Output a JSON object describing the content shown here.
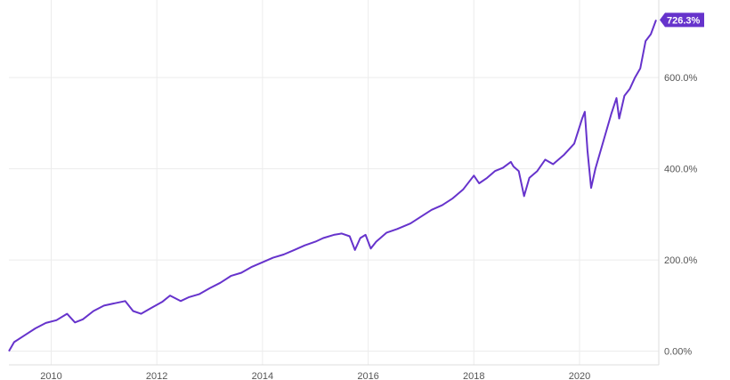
{
  "chart_data": {
    "type": "line",
    "title": "",
    "xlabel": "",
    "ylabel": "",
    "x_ticks": [
      "2010",
      "2012",
      "2014",
      "2016",
      "2018",
      "2020"
    ],
    "y_ticks": [
      "0.00%",
      "200.0%",
      "400.0%",
      "600.0%"
    ],
    "xlim": [
      2009.2,
      2021.5
    ],
    "ylim": [
      -30,
      770
    ],
    "grid": true,
    "series": [
      {
        "color": "#6633cc",
        "last_value_label": "726.3%",
        "points": [
          [
            2009.2,
            0
          ],
          [
            2009.3,
            20
          ],
          [
            2009.5,
            35
          ],
          [
            2009.7,
            50
          ],
          [
            2009.9,
            62
          ],
          [
            2010.1,
            68
          ],
          [
            2010.3,
            82
          ],
          [
            2010.45,
            63
          ],
          [
            2010.6,
            70
          ],
          [
            2010.8,
            88
          ],
          [
            2011.0,
            100
          ],
          [
            2011.2,
            105
          ],
          [
            2011.4,
            110
          ],
          [
            2011.55,
            88
          ],
          [
            2011.7,
            82
          ],
          [
            2011.9,
            95
          ],
          [
            2012.1,
            108
          ],
          [
            2012.25,
            122
          ],
          [
            2012.45,
            110
          ],
          [
            2012.6,
            118
          ],
          [
            2012.8,
            125
          ],
          [
            2013.0,
            138
          ],
          [
            2013.2,
            150
          ],
          [
            2013.4,
            165
          ],
          [
            2013.6,
            172
          ],
          [
            2013.8,
            185
          ],
          [
            2014.0,
            195
          ],
          [
            2014.2,
            205
          ],
          [
            2014.4,
            212
          ],
          [
            2014.6,
            222
          ],
          [
            2014.8,
            232
          ],
          [
            2015.0,
            240
          ],
          [
            2015.15,
            248
          ],
          [
            2015.35,
            255
          ],
          [
            2015.5,
            258
          ],
          [
            2015.65,
            252
          ],
          [
            2015.75,
            222
          ],
          [
            2015.85,
            248
          ],
          [
            2015.95,
            255
          ],
          [
            2016.05,
            225
          ],
          [
            2016.15,
            240
          ],
          [
            2016.35,
            260
          ],
          [
            2016.55,
            268
          ],
          [
            2016.8,
            280
          ],
          [
            2017.0,
            295
          ],
          [
            2017.2,
            310
          ],
          [
            2017.4,
            320
          ],
          [
            2017.6,
            335
          ],
          [
            2017.8,
            355
          ],
          [
            2018.0,
            385
          ],
          [
            2018.1,
            368
          ],
          [
            2018.25,
            380
          ],
          [
            2018.4,
            395
          ],
          [
            2018.55,
            402
          ],
          [
            2018.7,
            415
          ],
          [
            2018.75,
            405
          ],
          [
            2018.85,
            395
          ],
          [
            2018.95,
            340
          ],
          [
            2019.05,
            380
          ],
          [
            2019.2,
            395
          ],
          [
            2019.35,
            420
          ],
          [
            2019.5,
            410
          ],
          [
            2019.7,
            430
          ],
          [
            2019.9,
            455
          ],
          [
            2020.05,
            510
          ],
          [
            2020.1,
            525
          ],
          [
            2020.15,
            440
          ],
          [
            2020.22,
            358
          ],
          [
            2020.3,
            400
          ],
          [
            2020.45,
            460
          ],
          [
            2020.6,
            520
          ],
          [
            2020.7,
            555
          ],
          [
            2020.75,
            510
          ],
          [
            2020.85,
            560
          ],
          [
            2020.95,
            575
          ],
          [
            2021.05,
            600
          ],
          [
            2021.15,
            620
          ],
          [
            2021.25,
            680
          ],
          [
            2021.35,
            695
          ],
          [
            2021.45,
            726.3
          ]
        ]
      }
    ]
  }
}
